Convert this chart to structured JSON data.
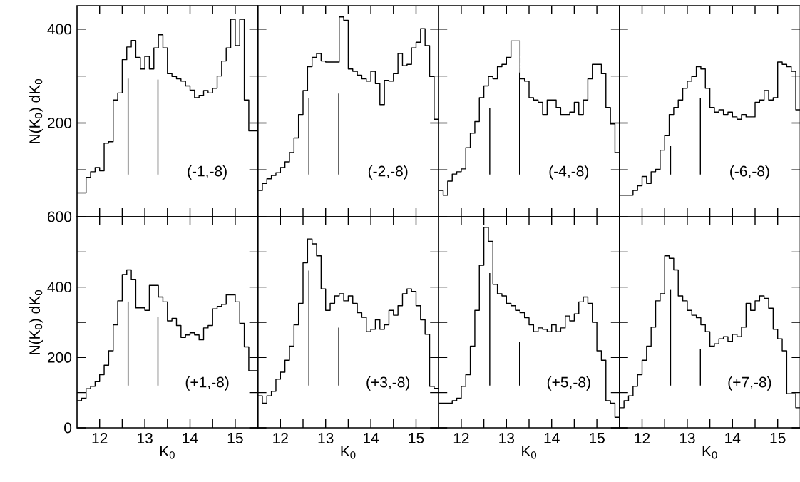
{
  "chart_data": [
    {
      "type": "histogram",
      "ylabel": "N(K$_{0}$) dK$_{0}$",
      "annotations": [
        "(-1,-8)"
      ],
      "color": "#000000",
      "tick_labels": "y",
      "xlim": [
        11.5,
        15.5
      ],
      "ylim": [
        0,
        450
      ],
      "xticks": [
        12,
        {
          "value": 12.5,
          "label": null
        },
        13,
        {
          "value": 13.5,
          "label": null
        },
        14,
        {
          "value": 14.5,
          "label": null
        },
        15
      ],
      "yticks": [
        {
          "value": 100,
          "label": null
        },
        200,
        {
          "value": 300,
          "label": null
        },
        400
      ],
      "ref_lines": [
        {
          "axis": "x",
          "value": 12.63
        },
        {
          "axis": "x",
          "value": 13.29
        }
      ],
      "bins": [
        11.5,
        11.6,
        11.7,
        11.8,
        11.9,
        12,
        12.1,
        12.2,
        12.3,
        12.4,
        12.5,
        12.6,
        12.7,
        12.8,
        12.9,
        13,
        13.1,
        13.2,
        13.3,
        13.4,
        13.5,
        13.6,
        13.7,
        13.8,
        13.9,
        14,
        14.1,
        14.2,
        14.3,
        14.4,
        14.5,
        14.6,
        14.7,
        14.8,
        14.9,
        15,
        15.1,
        15.2,
        15.3,
        15.4,
        15.5
      ],
      "values": [
        51,
        51,
        84,
        96,
        105,
        98,
        157,
        160,
        249,
        264,
        335,
        362,
        376,
        340,
        315,
        342,
        315,
        360,
        388,
        360,
        305,
        299,
        294,
        289,
        279,
        270,
        254,
        259,
        269,
        264,
        274,
        300,
        332,
        360,
        421,
        365,
        421,
        249,
        183,
        183
      ]
    },
    {
      "type": "histogram",
      "annotations": [
        "(-2,-8)"
      ],
      "color": "#000000",
      "tick_labels": false,
      "xlim": [
        11.5,
        15.5
      ],
      "ylim": [
        0,
        450
      ],
      "xticks": [
        12,
        {
          "value": 12.5,
          "label": null
        },
        13,
        {
          "value": 13.5,
          "label": null
        },
        14,
        {
          "value": 14.5,
          "label": null
        },
        15
      ],
      "yticks": [
        {
          "value": 100,
          "label": null
        },
        200,
        {
          "value": 300,
          "label": null
        },
        400
      ],
      "ref_lines": [
        {
          "axis": "x",
          "value": 12.63
        },
        {
          "axis": "x",
          "value": 13.29
        }
      ],
      "bins": [
        11.5,
        11.6,
        11.7,
        11.8,
        11.9,
        12,
        12.1,
        12.2,
        12.3,
        12.4,
        12.5,
        12.6,
        12.7,
        12.8,
        12.9,
        13,
        13.1,
        13.2,
        13.3,
        13.4,
        13.5,
        13.6,
        13.7,
        13.8,
        13.9,
        14,
        14.1,
        14.2,
        14.3,
        14.4,
        14.5,
        14.6,
        14.7,
        14.8,
        14.9,
        15,
        15.1,
        15.2,
        15.3,
        15.4,
        15.5
      ],
      "values": [
        56,
        71,
        81,
        88,
        94,
        105,
        117,
        137,
        168,
        218,
        269,
        320,
        340,
        348,
        332,
        330,
        330,
        330,
        426,
        419,
        315,
        310,
        302,
        294,
        289,
        310,
        284,
        239,
        291,
        289,
        305,
        348,
        322,
        325,
        360,
        372,
        401,
        365,
        299,
        208
      ]
    },
    {
      "type": "histogram",
      "annotations": [
        "(-4,-8)"
      ],
      "color": "#000000",
      "tick_labels": false,
      "xlim": [
        11.5,
        15.5
      ],
      "ylim": [
        0,
        450
      ],
      "xticks": [
        12,
        {
          "value": 12.5,
          "label": null
        },
        13,
        {
          "value": 13.5,
          "label": null
        },
        14,
        {
          "value": 14.5,
          "label": null
        },
        15
      ],
      "yticks": [
        {
          "value": 100,
          "label": null
        },
        200,
        {
          "value": 300,
          "label": null
        },
        400
      ],
      "ref_lines": [
        {
          "axis": "x",
          "value": 12.63
        },
        {
          "axis": "x",
          "value": 13.29
        }
      ],
      "bins": [
        11.5,
        11.6,
        11.7,
        11.8,
        11.9,
        12,
        12.1,
        12.2,
        12.3,
        12.4,
        12.5,
        12.6,
        12.7,
        12.8,
        12.9,
        13,
        13.1,
        13.2,
        13.3,
        13.4,
        13.5,
        13.6,
        13.7,
        13.8,
        13.9,
        14,
        14.1,
        14.2,
        14.3,
        14.4,
        14.5,
        14.6,
        14.7,
        14.8,
        14.9,
        15,
        15.1,
        15.2,
        15.3,
        15.4,
        15.5
      ],
      "values": [
        56,
        46,
        76,
        91,
        96,
        102,
        147,
        178,
        203,
        254,
        279,
        299,
        294,
        320,
        325,
        340,
        375,
        375,
        294,
        289,
        254,
        249,
        244,
        218,
        249,
        249,
        233,
        218,
        218,
        223,
        244,
        218,
        249,
        294,
        325,
        325,
        305,
        233,
        198,
        137
      ]
    },
    {
      "type": "histogram",
      "annotations": [
        "(-6,-8)"
      ],
      "color": "#000000",
      "tick_labels": false,
      "xlim": [
        11.5,
        15.5
      ],
      "ylim": [
        0,
        450
      ],
      "xticks": [
        12,
        {
          "value": 12.5,
          "label": null
        },
        13,
        {
          "value": 13.5,
          "label": null
        },
        14,
        {
          "value": 14.5,
          "label": null
        },
        15
      ],
      "yticks": [
        {
          "value": 100,
          "label": null
        },
        200,
        {
          "value": 300,
          "label": null
        },
        400
      ],
      "ref_lines": [
        {
          "axis": "x",
          "value": 12.63
        },
        {
          "axis": "x",
          "value": 13.29
        }
      ],
      "bins": [
        11.5,
        11.6,
        11.7,
        11.8,
        11.9,
        12,
        12.1,
        12.2,
        12.3,
        12.4,
        12.5,
        12.6,
        12.7,
        12.8,
        12.9,
        13,
        13.1,
        13.2,
        13.3,
        13.4,
        13.5,
        13.6,
        13.7,
        13.8,
        13.9,
        14,
        14.1,
        14.2,
        14.3,
        14.4,
        14.5,
        14.6,
        14.7,
        14.8,
        14.9,
        15,
        15.1,
        15.2,
        15.3,
        15.4,
        15.5
      ],
      "values": [
        46,
        46,
        46,
        56,
        66,
        86,
        71,
        96,
        101,
        142,
        173,
        218,
        233,
        249,
        274,
        289,
        299,
        320,
        315,
        274,
        233,
        223,
        228,
        218,
        223,
        213,
        208,
        218,
        213,
        213,
        244,
        249,
        269,
        249,
        254,
        330,
        325,
        320,
        310,
        228
      ]
    },
    {
      "type": "histogram",
      "xlabel": "K$_{0}$",
      "ylabel": "N(K$_{0}$) dK$_{0}$",
      "annotations": [
        "(+1,-8)"
      ],
      "color": "#000000",
      "xlim": [
        11.5,
        15.5
      ],
      "ylim": [
        0,
        600
      ],
      "xticks": [
        12,
        {
          "value": 12.5,
          "label": null
        },
        13,
        {
          "value": 13.5,
          "label": null
        },
        14,
        {
          "value": 14.5,
          "label": null
        },
        15
      ],
      "yticks": [
        0,
        {
          "value": 100,
          "label": null
        },
        200,
        {
          "value": 300,
          "label": null
        },
        400,
        {
          "value": 500,
          "label": null
        },
        600
      ],
      "ref_lines": [
        {
          "axis": "x",
          "value": 12.63
        },
        {
          "axis": "x",
          "value": 13.29
        }
      ],
      "bins": [
        11.5,
        11.6,
        11.7,
        11.8,
        11.9,
        12,
        12.1,
        12.2,
        12.3,
        12.4,
        12.5,
        12.6,
        12.7,
        12.8,
        12.9,
        13,
        13.1,
        13.2,
        13.3,
        13.4,
        13.5,
        13.6,
        13.7,
        13.8,
        13.9,
        14,
        14.1,
        14.2,
        14.3,
        14.4,
        14.5,
        14.6,
        14.7,
        14.8,
        14.9,
        15,
        15.1,
        15.2,
        15.3,
        15.4,
        15.5
      ],
      "values": [
        77,
        84,
        111,
        118,
        131,
        151,
        178,
        219,
        293,
        361,
        436,
        449,
        422,
        341,
        341,
        334,
        405,
        405,
        372,
        358,
        304,
        311,
        291,
        257,
        264,
        270,
        264,
        250,
        284,
        291,
        338,
        345,
        351,
        378,
        378,
        358,
        297,
        230,
        162,
        162
      ]
    },
    {
      "type": "histogram",
      "xlabel": "K$_{0}$",
      "annotations": [
        "(+3,-8)"
      ],
      "color": "#000000",
      "tick_labels": "x",
      "xlim": [
        11.5,
        15.5
      ],
      "ylim": [
        0,
        600
      ],
      "xticks": [
        12,
        {
          "value": 12.5,
          "label": null
        },
        13,
        {
          "value": 13.5,
          "label": null
        },
        14,
        {
          "value": 14.5,
          "label": null
        },
        15
      ],
      "yticks": [
        0,
        {
          "value": 100,
          "label": null
        },
        200,
        {
          "value": 300,
          "label": null
        },
        400,
        {
          "value": 500,
          "label": null
        },
        600
      ],
      "ref_lines": [
        {
          "axis": "x",
          "value": 12.63
        },
        {
          "axis": "x",
          "value": 13.29
        }
      ],
      "bins": [
        11.5,
        11.6,
        11.7,
        11.8,
        11.9,
        12,
        12.1,
        12.2,
        12.3,
        12.4,
        12.5,
        12.6,
        12.7,
        12.8,
        12.9,
        13,
        13.1,
        13.2,
        13.3,
        13.4,
        13.5,
        13.6,
        13.7,
        13.8,
        13.9,
        14,
        14.1,
        14.2,
        14.3,
        14.4,
        14.5,
        14.6,
        14.7,
        14.8,
        14.9,
        15,
        15.1,
        15.2,
        15.3,
        15.4,
        15.5
      ],
      "values": [
        91,
        70,
        91,
        104,
        138,
        158,
        192,
        232,
        293,
        354,
        469,
        537,
        523,
        489,
        395,
        334,
        354,
        375,
        381,
        361,
        375,
        354,
        327,
        314,
        273,
        280,
        307,
        280,
        293,
        334,
        320,
        347,
        381,
        395,
        388,
        347,
        307,
        266,
        118,
        112
      ]
    },
    {
      "type": "histogram",
      "xlabel": "K$_{0}$",
      "annotations": [
        "(+5,-8)"
      ],
      "color": "#000000",
      "tick_labels": "x",
      "xlim": [
        11.5,
        15.5
      ],
      "ylim": [
        0,
        600
      ],
      "xticks": [
        12,
        {
          "value": 12.5,
          "label": null
        },
        13,
        {
          "value": 13.5,
          "label": null
        },
        14,
        {
          "value": 14.5,
          "label": null
        },
        15
      ],
      "yticks": [
        0,
        {
          "value": 100,
          "label": null
        },
        200,
        {
          "value": 300,
          "label": null
        },
        400,
        {
          "value": 500,
          "label": null
        },
        600
      ],
      "ref_lines": [
        {
          "axis": "x",
          "value": 12.63
        },
        {
          "axis": "x",
          "value": 13.29
        }
      ],
      "bins": [
        11.5,
        11.6,
        11.7,
        11.8,
        11.9,
        12,
        12.1,
        12.2,
        12.3,
        12.4,
        12.5,
        12.6,
        12.7,
        12.8,
        12.9,
        13,
        13.1,
        13.2,
        13.3,
        13.4,
        13.5,
        13.6,
        13.7,
        13.8,
        13.9,
        14,
        14.1,
        14.2,
        14.3,
        14.4,
        14.5,
        14.6,
        14.7,
        14.8,
        14.9,
        15,
        15.1,
        15.2,
        15.3,
        15.4,
        15.5
      ],
      "values": [
        70,
        70,
        70,
        77,
        84,
        118,
        151,
        232,
        334,
        462,
        570,
        530,
        408,
        381,
        375,
        354,
        347,
        334,
        327,
        313,
        293,
        273,
        284,
        280,
        273,
        293,
        273,
        284,
        318,
        304,
        324,
        358,
        372,
        354,
        300,
        219,
        192,
        77,
        70,
        30
      ]
    },
    {
      "type": "histogram",
      "xlabel": "K$_{0}$",
      "annotations": [
        "(+7,-8)"
      ],
      "color": "#000000",
      "tick_labels": "x",
      "xlim": [
        11.5,
        15.5
      ],
      "ylim": [
        0,
        600
      ],
      "xticks": [
        12,
        {
          "value": 12.5,
          "label": null
        },
        13,
        {
          "value": 13.5,
          "label": null
        },
        14,
        {
          "value": 14.5,
          "label": null
        },
        15
      ],
      "yticks": [
        0,
        {
          "value": 100,
          "label": null
        },
        200,
        {
          "value": 300,
          "label": null
        },
        400,
        {
          "value": 500,
          "label": null
        },
        600
      ],
      "ref_lines": [
        {
          "axis": "x",
          "value": 12.63
        },
        {
          "axis": "x",
          "value": 13.29
        }
      ],
      "bins": [
        11.5,
        11.6,
        11.7,
        11.8,
        11.9,
        12,
        12.1,
        12.2,
        12.3,
        12.4,
        12.5,
        12.6,
        12.7,
        12.8,
        12.9,
        13,
        13.1,
        13.2,
        13.3,
        13.4,
        13.5,
        13.6,
        13.7,
        13.8,
        13.9,
        14,
        14.1,
        14.2,
        14.3,
        14.4,
        14.5,
        14.6,
        14.7,
        14.8,
        14.9,
        15,
        15.1,
        15.2,
        15.3,
        15.4,
        15.5
      ],
      "values": [
        57,
        77,
        91,
        118,
        151,
        192,
        232,
        286,
        361,
        381,
        489,
        482,
        449,
        375,
        361,
        334,
        320,
        313,
        293,
        273,
        232,
        239,
        253,
        259,
        246,
        266,
        259,
        286,
        354,
        334,
        361,
        375,
        368,
        340,
        280,
        253,
        219,
        97,
        97,
        57
      ]
    }
  ]
}
